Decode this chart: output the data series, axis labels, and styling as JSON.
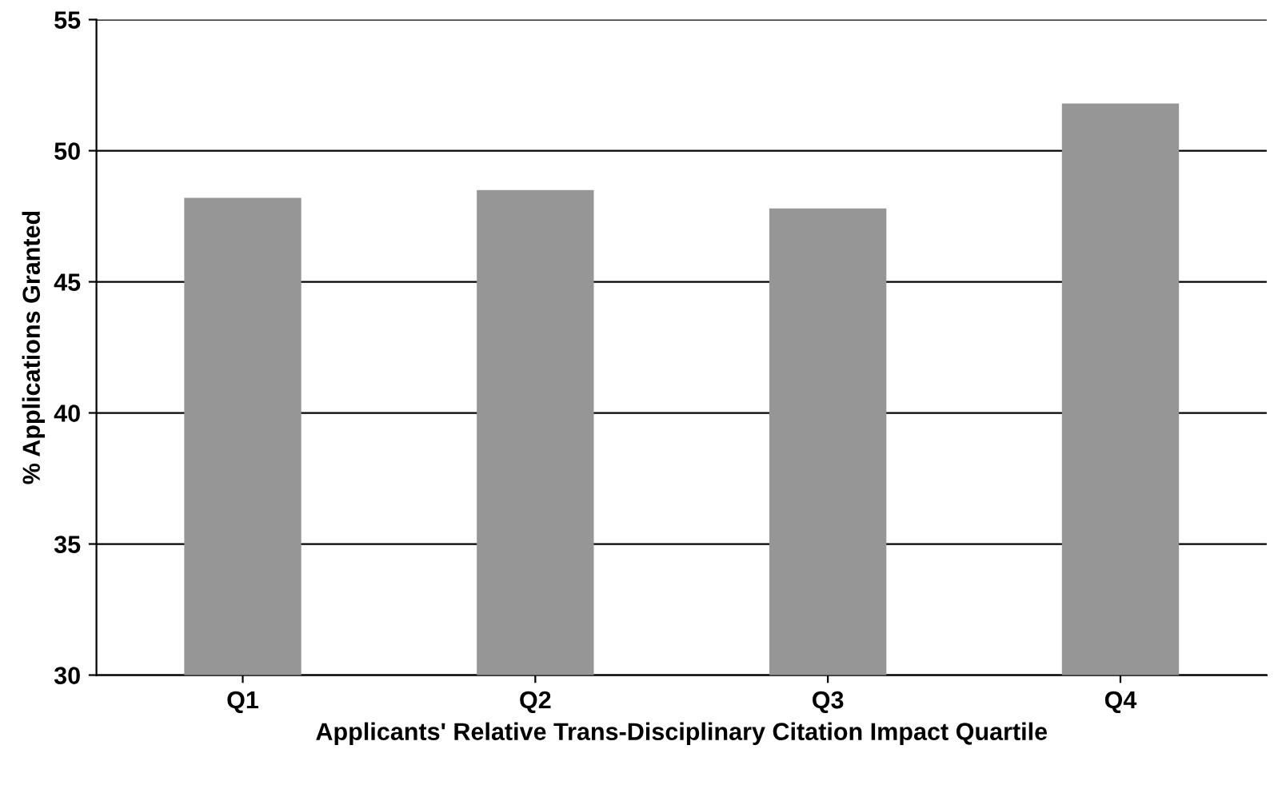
{
  "chart_data": {
    "type": "bar",
    "xlabel": "Applicants' Relative Trans-Disciplinary Citation Impact Quartile",
    "ylabel": "% Applications Granted",
    "categories": [
      "Q1",
      "Q2",
      "Q3",
      "Q4"
    ],
    "values": [
      48.2,
      48.5,
      47.8,
      51.8
    ],
    "color": "#969696",
    "ylim": [
      30,
      55
    ],
    "yticks": [
      30,
      35,
      40,
      45,
      50,
      55
    ],
    "grid": "y"
  }
}
